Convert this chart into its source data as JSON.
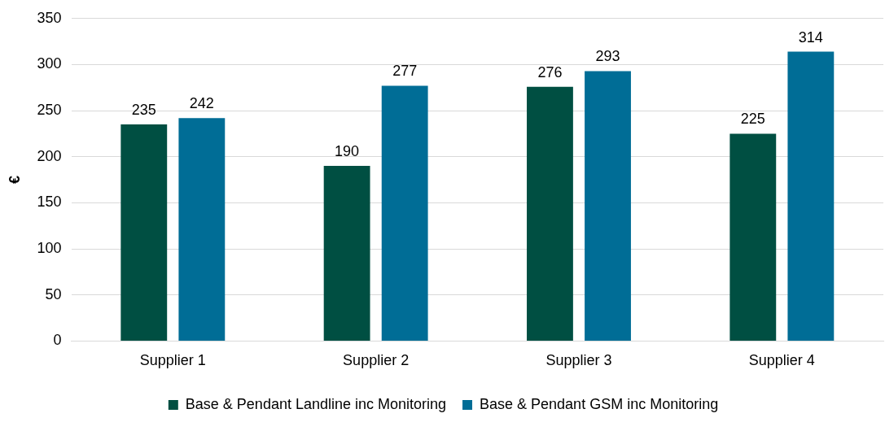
{
  "chart_data": {
    "type": "bar",
    "ylabel": "€",
    "categories": [
      "Supplier 1",
      "Supplier 2",
      "Supplier 3",
      "Supplier 4"
    ],
    "series": [
      {
        "name": "Base & Pendant Landline inc Monitoring",
        "color": "#004f42",
        "values": [
          235,
          190,
          276,
          225
        ]
      },
      {
        "name": "Base & Pendant GSM inc Monitoring",
        "color": "#006d96",
        "values": [
          242,
          277,
          293,
          314
        ]
      }
    ],
    "ylim": [
      0,
      350
    ],
    "yticks": [
      0,
      50,
      100,
      150,
      200,
      250,
      300,
      350
    ],
    "grid": "y",
    "legend": "bottom",
    "data_labels": true
  }
}
